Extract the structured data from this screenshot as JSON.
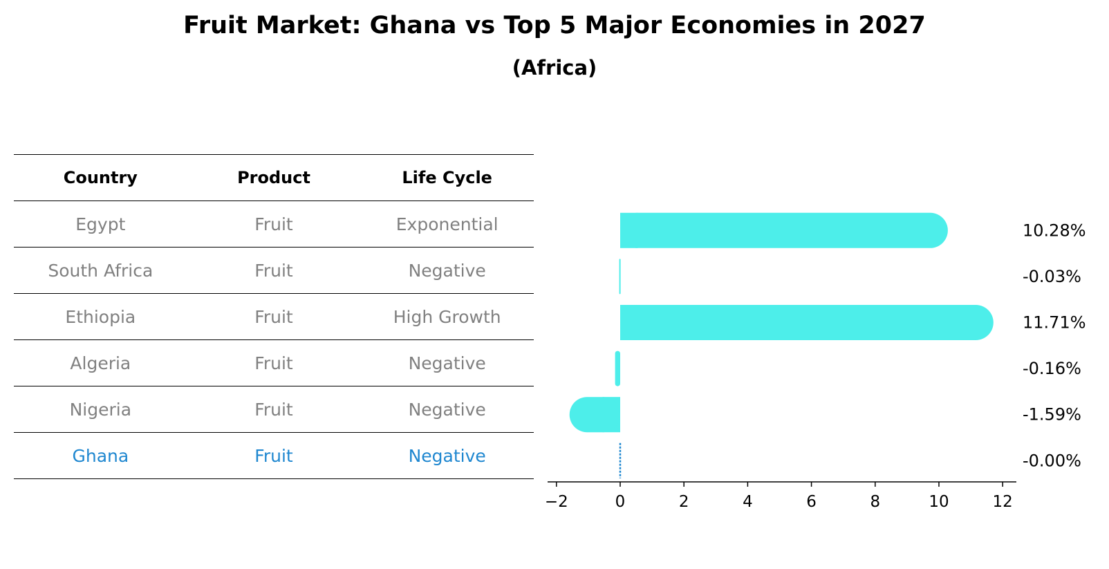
{
  "title": "Fruit Market: Ghana vs Top 5 Major Economies in 2027",
  "subtitle": "(Africa)",
  "table": {
    "headers": [
      "Country",
      "Product",
      "Life Cycle"
    ],
    "rows": [
      {
        "country": "Egypt",
        "product": "Fruit",
        "life_cycle": "Exponential"
      },
      {
        "country": "South Africa",
        "product": "Fruit",
        "life_cycle": "Negative"
      },
      {
        "country": "Ethiopia",
        "product": "Fruit",
        "life_cycle": "High Growth"
      },
      {
        "country": "Algeria",
        "product": "Fruit",
        "life_cycle": "Negative"
      },
      {
        "country": "Nigeria",
        "product": "Fruit",
        "life_cycle": "Negative"
      },
      {
        "country": "Ghana",
        "product": "Fruit",
        "life_cycle": "Negative"
      }
    ],
    "highlight_row": "Ghana",
    "highlight_color": "#1f87d0",
    "text_color": "#808080"
  },
  "chart_data": {
    "type": "bar",
    "orientation": "horizontal",
    "categories": [
      "Egypt",
      "South Africa",
      "Ethiopia",
      "Algeria",
      "Nigeria",
      "Ghana"
    ],
    "values": [
      10.28,
      -0.03,
      11.71,
      -0.16,
      -1.59,
      -0.0
    ],
    "value_labels": [
      "10.28%",
      "-0.03%",
      "11.71%",
      "-0.16%",
      "-1.59%",
      "-0.00%"
    ],
    "xlim": [
      -2.2,
      12.4
    ],
    "xticks": [
      -2,
      0,
      2,
      4,
      6,
      8,
      10,
      12
    ],
    "xtick_labels": [
      "−2",
      "0",
      "2",
      "4",
      "6",
      "8",
      "10",
      "12"
    ],
    "bar_color": "#4deeea",
    "ghana_line_color": "#1f87d0",
    "grid": false
  }
}
